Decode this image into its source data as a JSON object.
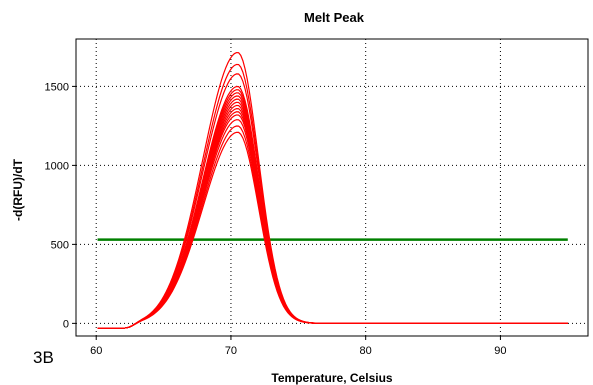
{
  "chart_data": {
    "type": "line",
    "title": "Melt Peak",
    "xlabel": "Temperature, Celsius",
    "ylabel": "-d(RFU)/dT",
    "panel_label": "3B",
    "xlim": [
      58.5,
      96.5
    ],
    "ylim": [
      -80,
      1800
    ],
    "xticks": [
      60,
      70,
      80,
      90
    ],
    "yticks": [
      0,
      500,
      1000,
      1500
    ],
    "grid": true,
    "grid_style": "dotted",
    "threshold": {
      "value": 530,
      "x_range": [
        60.1,
        95
      ],
      "color": "#008000"
    },
    "series_color": "#ff0000",
    "curve_shape": {
      "x_start": 60.1,
      "x_end": 95,
      "peak_x": 70.5,
      "baseline_until": 62.5,
      "min_value": -30
    },
    "series": [
      {
        "peak": 1715
      },
      {
        "peak": 1640
      },
      {
        "peak": 1580
      },
      {
        "peak": 1500
      },
      {
        "peak": 1480
      },
      {
        "peak": 1460
      },
      {
        "peak": 1440
      },
      {
        "peak": 1420
      },
      {
        "peak": 1400
      },
      {
        "peak": 1380
      },
      {
        "peak": 1360
      },
      {
        "peak": 1340
      },
      {
        "peak": 1320
      },
      {
        "peak": 1290
      },
      {
        "peak": 1250
      },
      {
        "peak": 1210
      }
    ]
  }
}
